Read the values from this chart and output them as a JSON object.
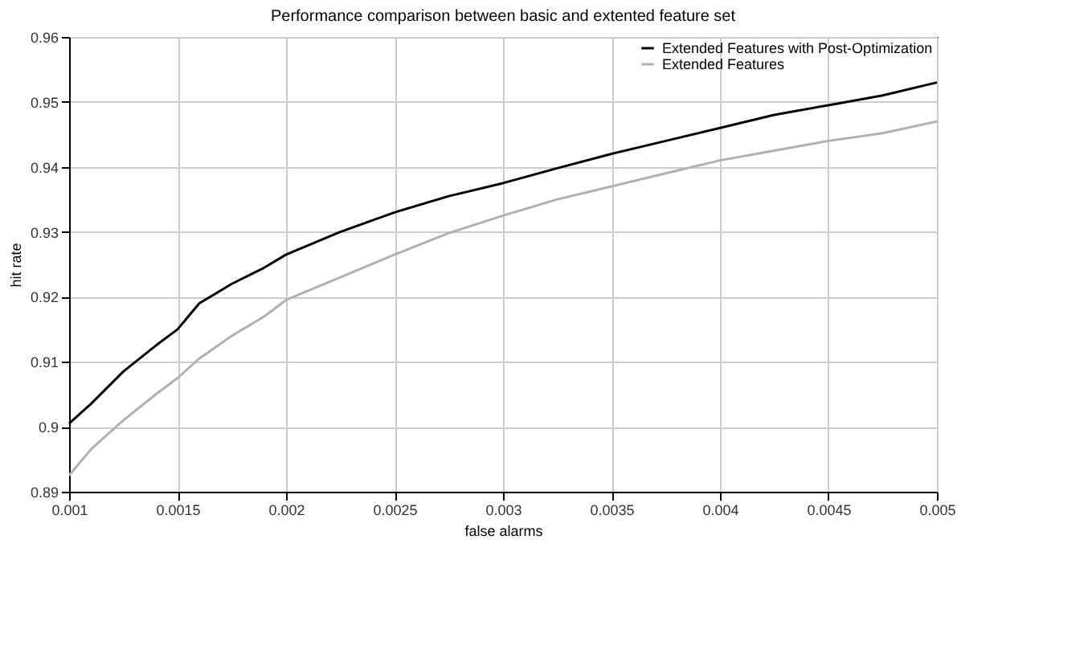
{
  "chart_data": {
    "type": "line",
    "title": "Performance comparison between basic and extented feature set",
    "xlabel": "false alarms",
    "ylabel": "hit rate",
    "x": [
      0.001,
      0.0011,
      0.00125,
      0.0014,
      0.0015,
      0.0016,
      0.00175,
      0.0019,
      0.002,
      0.00225,
      0.0025,
      0.00275,
      0.003,
      0.00325,
      0.0035,
      0.00375,
      0.004,
      0.00425,
      0.0045,
      0.00475,
      0.005
    ],
    "series": [
      {
        "name": "Extended Features with Post-Optimization",
        "color": "#000000",
        "values": [
          0.9005,
          0.9035,
          0.9085,
          0.9125,
          0.915,
          0.919,
          0.922,
          0.9245,
          0.9265,
          0.93,
          0.933,
          0.9355,
          0.9375,
          0.9398,
          0.942,
          0.944,
          0.946,
          0.948,
          0.9495,
          0.951,
          0.953
        ]
      },
      {
        "name": "Extended Features",
        "color": "#b0b0b0",
        "values": [
          0.8925,
          0.8965,
          0.901,
          0.905,
          0.9075,
          0.9105,
          0.914,
          0.917,
          0.9195,
          0.923,
          0.9265,
          0.9298,
          0.9325,
          0.935,
          0.937,
          0.939,
          0.941,
          0.9425,
          0.944,
          0.9452,
          0.947
        ]
      }
    ],
    "xlim": [
      0.001,
      0.005
    ],
    "xticks": [
      0.001,
      0.0015,
      0.002,
      0.0025,
      0.003,
      0.0035,
      0.004,
      0.0045,
      0.005
    ],
    "ylim": [
      0.89,
      0.96
    ],
    "yticks": [
      0.89,
      0.9,
      0.91,
      0.92,
      0.93,
      0.94,
      0.95,
      0.96
    ],
    "grid": true,
    "legend": "top right",
    "marker": "none",
    "line_style": "solid"
  }
}
